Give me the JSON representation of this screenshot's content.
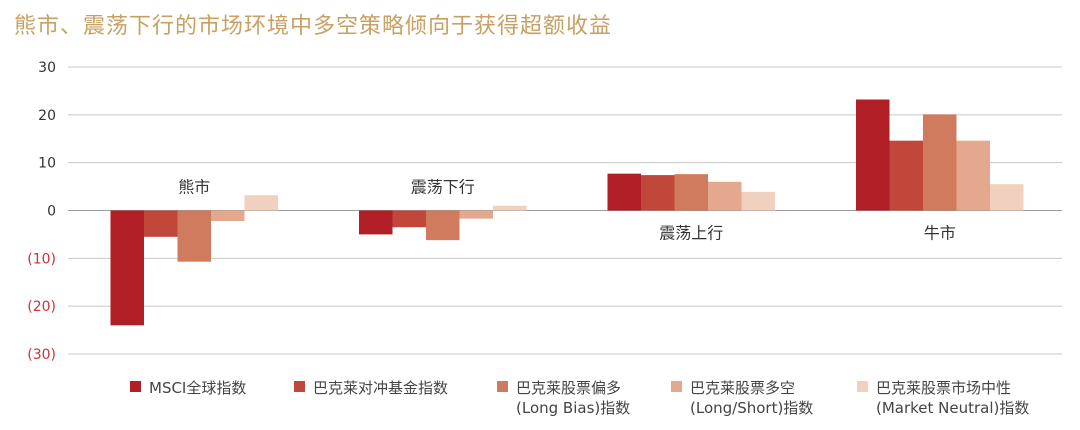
{
  "title": "熊市、震荡下行的市场环境中多空策略倾向于获得超额收益",
  "chart_data": {
    "type": "bar",
    "categories": [
      "熊市",
      "震荡下行",
      "震荡上行",
      "牛市"
    ],
    "series": [
      {
        "name": "MSCI全球指数",
        "values": [
          -24,
          -5,
          7.7,
          23.2
        ],
        "color": "#B01E26"
      },
      {
        "name": "巴克莱对冲基金指数",
        "values": [
          -5.5,
          -3.5,
          7.4,
          14.6
        ],
        "color": "#C1473A"
      },
      {
        "name": "巴克莱股票偏多(Long Bias)指数",
        "values": [
          -10.7,
          -6.2,
          7.6,
          20.1
        ],
        "color": "#D07B5E"
      },
      {
        "name": "巴克莱股票多空(Long/Short)指数",
        "values": [
          -2.2,
          -1.7,
          6.0,
          14.6
        ],
        "color": "#E3A88D"
      },
      {
        "name": "巴克莱股票市场中性(Market Neutral)指数",
        "values": [
          3.2,
          1.0,
          3.9,
          5.5
        ],
        "color": "#F0D0BE"
      }
    ],
    "ylim": [
      -30,
      30
    ],
    "yticks": [
      "30",
      "20",
      "10",
      "0",
      "(10)",
      "(20)",
      "(30)"
    ],
    "ytick_values": [
      30,
      20,
      10,
      0,
      -10,
      -20,
      -30
    ],
    "negative_tick_color": "#C8323C",
    "grid": true,
    "legend_position": "bottom"
  },
  "legend": [
    {
      "line1": "MSCI全球指数",
      "line2": ""
    },
    {
      "line1": "巴克莱对冲基金指数",
      "line2": ""
    },
    {
      "line1": "巴克莱股票偏多",
      "line2": "(Long Bias)指数"
    },
    {
      "line1": "巴克莱股票多空",
      "line2": "(Long/Short)指数"
    },
    {
      "line1": "巴克莱股票市场中性",
      "line2": "(Market Neutral)指数"
    }
  ]
}
